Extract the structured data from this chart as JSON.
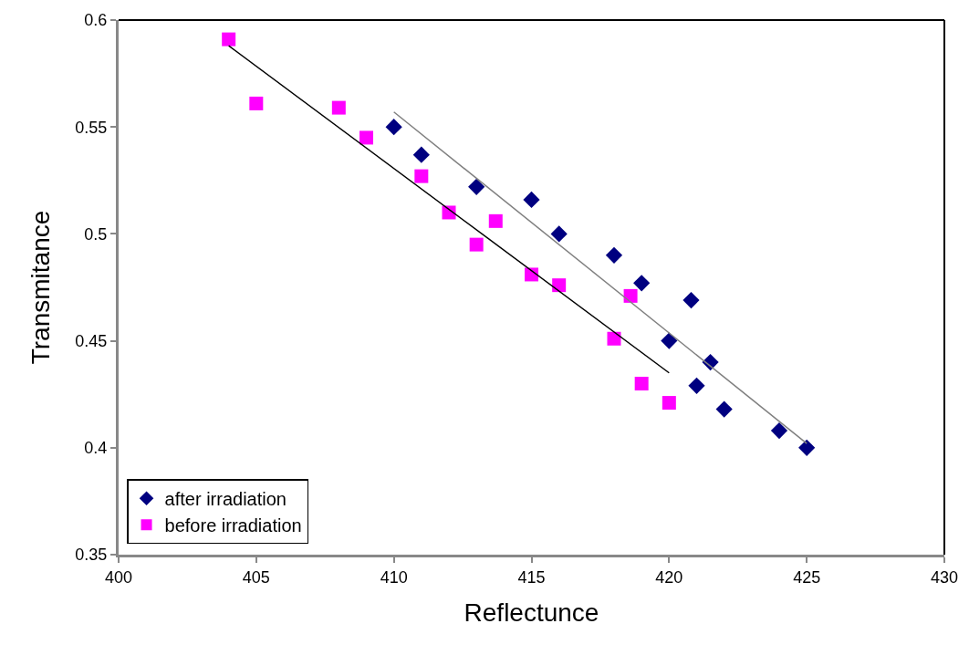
{
  "chart_data": {
    "type": "scatter",
    "xlabel": "Reflectunce",
    "ylabel": "Transmitance",
    "xlim": [
      400,
      430
    ],
    "xticks": [
      400,
      405,
      410,
      415,
      420,
      425,
      430
    ],
    "ylim": [
      0.35,
      0.6
    ],
    "yticks": [
      0.35,
      0.4,
      0.45,
      0.5,
      0.55,
      0.6
    ],
    "legend": "bottom left",
    "series": [
      {
        "name": "after irradiation",
        "color": "#000080",
        "marker": "diamond",
        "x": [
          410,
          411,
          413,
          415,
          416,
          418,
          419,
          420.8,
          420,
          421.5,
          421,
          422,
          424,
          425
        ],
        "values": [
          0.55,
          0.537,
          0.522,
          0.516,
          0.5,
          0.49,
          0.477,
          0.469,
          0.45,
          0.44,
          0.429,
          0.418,
          0.408,
          0.4
        ]
      },
      {
        "name": "before irradiation",
        "color": "#ff00ff",
        "marker": "square",
        "x": [
          404,
          405,
          408,
          409,
          411,
          412,
          413,
          413.7,
          415,
          416,
          418,
          418.6,
          419,
          420
        ],
        "values": [
          0.591,
          0.561,
          0.559,
          0.545,
          0.527,
          0.51,
          0.495,
          0.506,
          0.481,
          0.476,
          0.451,
          0.471,
          0.43,
          0.421
        ]
      },
      {
        "type": "line",
        "color": "#808080",
        "marker": "none",
        "x": [
          410,
          425
        ],
        "values": [
          0.557,
          0.402
        ]
      },
      {
        "type": "line",
        "color": "#000000",
        "marker": "none",
        "x": [
          404,
          420
        ],
        "values": [
          0.588,
          0.435
        ]
      }
    ]
  }
}
